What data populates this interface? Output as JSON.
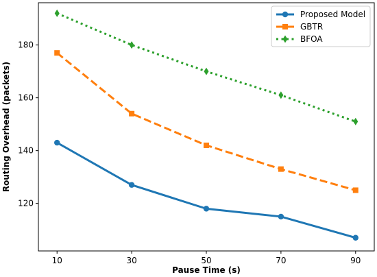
{
  "chart_data": {
    "type": "line",
    "title": "",
    "xlabel": "Pause Time (s)",
    "ylabel": "Routing Overhead (packets)",
    "x": [
      10,
      30,
      50,
      70,
      90
    ],
    "xticks": [
      10,
      30,
      50,
      70,
      90
    ],
    "yticks": [
      120,
      140,
      160,
      180
    ],
    "xlim": [
      5,
      95
    ],
    "ylim": [
      102,
      196
    ],
    "grid": false,
    "legend_position": "top-right",
    "series": [
      {
        "name": "Proposed Model",
        "values": [
          143,
          127,
          118,
          115,
          107
        ],
        "color": "#1f77b4",
        "line": "solid",
        "marker": "circle"
      },
      {
        "name": "GBTR",
        "values": [
          177,
          154,
          142,
          133,
          125
        ],
        "color": "#ff7f0e",
        "line": "dashed",
        "marker": "square"
      },
      {
        "name": "BFOA",
        "values": [
          192,
          180,
          170,
          161,
          151
        ],
        "color": "#2ca02c",
        "line": "dotted",
        "marker": "diamond"
      }
    ]
  }
}
